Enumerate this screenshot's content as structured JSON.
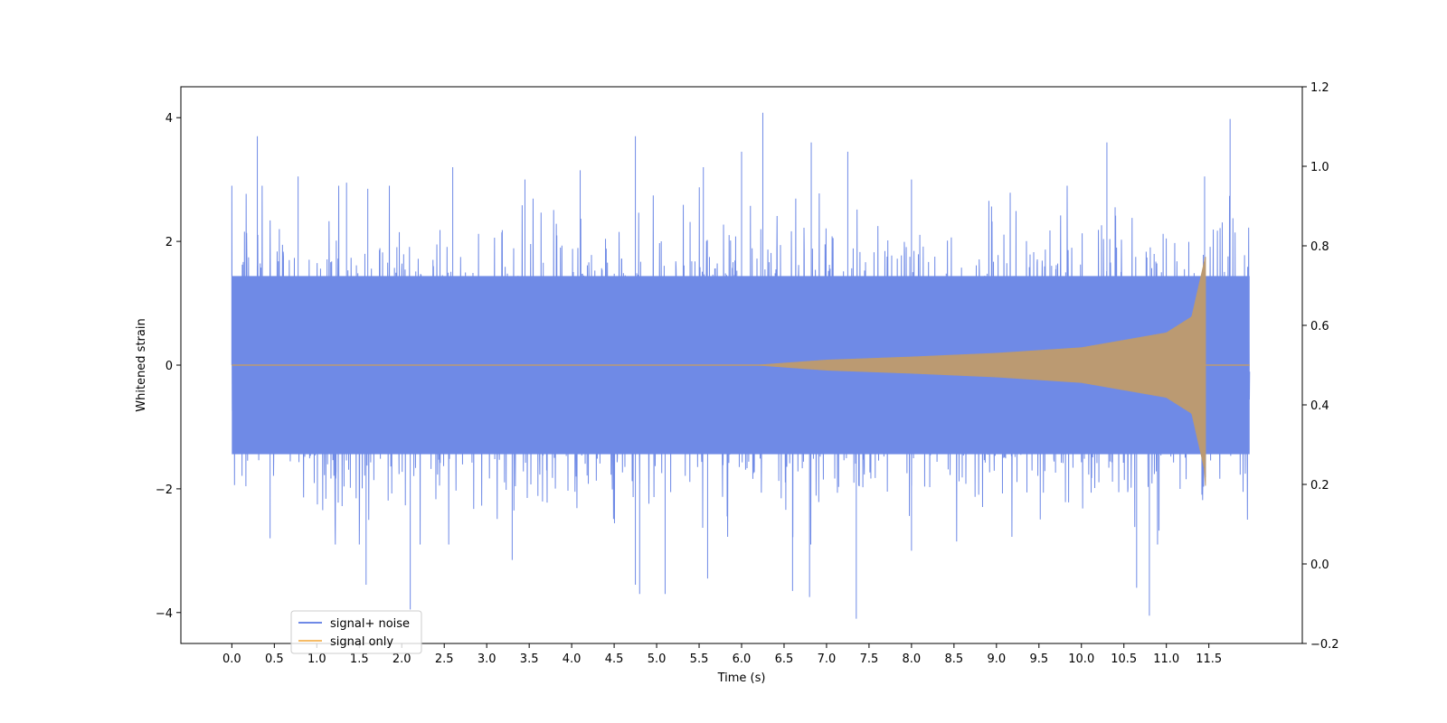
{
  "chart_data": {
    "type": "line",
    "title": "",
    "xlabel": "Time (s)",
    "ylabel": "Whitened strain",
    "ylabel_right": "",
    "xlim": [
      -0.6,
      12.6
    ],
    "ylim": [
      -4.5,
      4.5
    ],
    "ylim_right": [
      -0.2,
      1.2
    ],
    "xticks": [
      0.0,
      0.5,
      1.0,
      1.5,
      2.0,
      2.5,
      3.0,
      3.5,
      4.0,
      4.5,
      5.0,
      5.5,
      6.0,
      6.5,
      7.0,
      7.5,
      8.0,
      8.5,
      9.0,
      9.5,
      10.0,
      10.5,
      11.0,
      11.5
    ],
    "xtick_labels": [
      "0.0",
      "0.5",
      "1.0",
      "1.5",
      "2.0",
      "2.5",
      "3.0",
      "3.5",
      "4.0",
      "4.5",
      "5.0",
      "5.5",
      "6.0",
      "6.5",
      "7.0",
      "7.5",
      "8.0",
      "8.5",
      "9.0",
      "9.5",
      "10.0",
      "10.5",
      "11.0",
      "11.5"
    ],
    "yticks": [
      -4,
      -2,
      0,
      2,
      4
    ],
    "ytick_labels": [
      "−4",
      "−2",
      "0",
      "2",
      "4"
    ],
    "yticks_right": [
      -0.2,
      0.0,
      0.2,
      0.4,
      0.6,
      0.8,
      1.0,
      1.2
    ],
    "ytick_labels_right": [
      "−0.2",
      "0.0",
      "0.2",
      "0.4",
      "0.6",
      "0.8",
      "1.0",
      "1.2"
    ],
    "grid": false,
    "legend_position": "lower-left",
    "series": [
      {
        "name": "signal+ noise",
        "color": "#6f8ae6",
        "x_range": [
          0.0,
          11.98
        ],
        "amplitude_band": [
          -2.0,
          2.0
        ],
        "spikes": [
          [
            0.0,
            2.83
          ],
          [
            0.3,
            3.7
          ],
          [
            0.78,
            3.05
          ],
          [
            1.35,
            2.95
          ],
          [
            1.6,
            2.85
          ],
          [
            2.6,
            3.2
          ],
          [
            3.45,
            3.0
          ],
          [
            4.1,
            3.15
          ],
          [
            4.75,
            3.7
          ],
          [
            5.55,
            3.2
          ],
          [
            6.0,
            3.45
          ],
          [
            6.25,
            4.08
          ],
          [
            6.82,
            3.6
          ],
          [
            7.25,
            3.45
          ],
          [
            8.0,
            3.0
          ],
          [
            10.3,
            3.6
          ],
          [
            11.45,
            3.05
          ],
          [
            11.75,
            3.98
          ],
          [
            0.45,
            -2.8
          ],
          [
            1.58,
            -3.55
          ],
          [
            2.1,
            -3.95
          ],
          [
            3.3,
            -3.15
          ],
          [
            4.75,
            -3.55
          ],
          [
            4.8,
            -3.7
          ],
          [
            5.1,
            -3.7
          ],
          [
            5.6,
            -3.45
          ],
          [
            6.6,
            -3.65
          ],
          [
            6.8,
            -3.75
          ],
          [
            7.35,
            -4.1
          ],
          [
            8.0,
            -3.0
          ],
          [
            10.65,
            -3.6
          ],
          [
            10.8,
            -4.05
          ]
        ],
        "seed": 7
      },
      {
        "name": "signal only",
        "color": "#f5bb66",
        "overlap_color": "#bb9a72",
        "x_range": [
          0.0,
          11.98
        ],
        "chirp_start": 6.2,
        "merger_time": 11.46,
        "peak_upper": 1.75,
        "peak_lower": -1.95,
        "envelope_at": [
          [
            6.2,
            0.0
          ],
          [
            7.0,
            0.08
          ],
          [
            8.0,
            0.13
          ],
          [
            9.0,
            0.19
          ],
          [
            10.0,
            0.28
          ],
          [
            11.0,
            0.52
          ],
          [
            11.3,
            0.78
          ],
          [
            11.46,
            1.75
          ]
        ]
      }
    ]
  }
}
